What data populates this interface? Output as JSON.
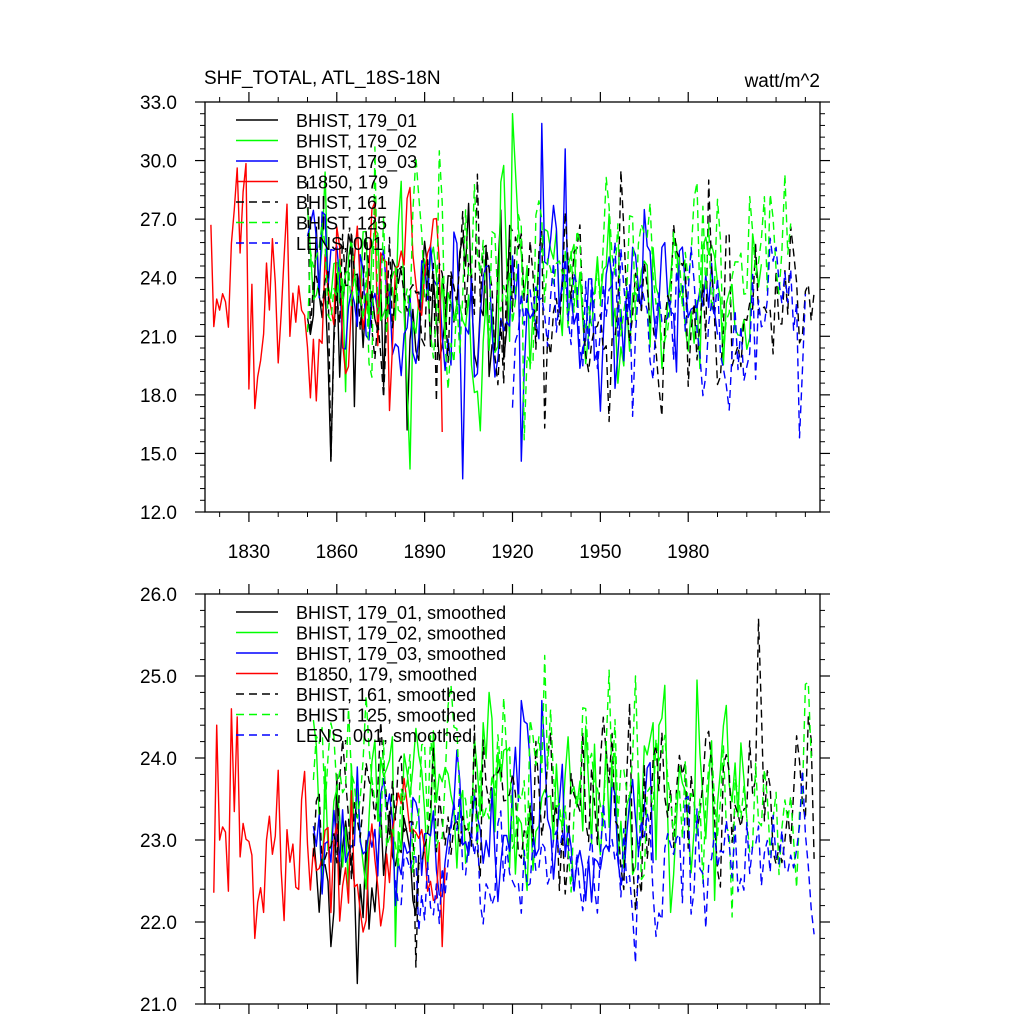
{
  "chart_data": [
    {
      "type": "line",
      "title": "SHF_TOTAL, ATL_18S-18N",
      "units": "watt/m^2",
      "xlim": [
        1815,
        2025
      ],
      "ylim": [
        12.0,
        33.0
      ],
      "x_ticks": [
        1830,
        1860,
        1890,
        1920,
        1950,
        1980
      ],
      "x_tick_labels": [
        "1830",
        "1860",
        "1890",
        "1920",
        "1950",
        "1980"
      ],
      "y_ticks": [
        12.0,
        15.0,
        18.0,
        21.0,
        24.0,
        27.0,
        30.0,
        33.0
      ],
      "y_tick_labels": [
        "12.0",
        "15.0",
        "18.0",
        "21.0",
        "24.0",
        "27.0",
        "30.0",
        "33.0"
      ],
      "grid": false,
      "legend_position": "top-left",
      "series": [
        {
          "name": "BHIST, 179_01",
          "color": "#000000",
          "dash": "solid",
          "x_start": 1850,
          "x_end": 1920,
          "mean": 22.8,
          "amplitude": 2.6,
          "seed": 11,
          "extremes": [
            [
              1858,
              14.6
            ],
            [
              1866,
              17.4
            ],
            [
              1884,
              16.2
            ],
            [
              1905,
              27.8
            ]
          ]
        },
        {
          "name": "BHIST, 179_02",
          "color": "#00ff00",
          "dash": "solid",
          "x_start": 1850,
          "x_end": 2005,
          "mean": 23.3,
          "amplitude": 2.6,
          "seed": 23,
          "extremes": [
            [
              1885,
              14.2
            ],
            [
              1920,
              32.4
            ],
            [
              1916,
              28.9
            ],
            [
              1945,
              19.6
            ]
          ]
        },
        {
          "name": "BHIST, 179_03",
          "color": "#0000ff",
          "dash": "solid",
          "x_start": 1850,
          "x_end": 1990,
          "mean": 22.8,
          "amplitude": 2.4,
          "seed": 37,
          "extremes": [
            [
              1903,
              13.7
            ],
            [
              1923,
              14.6
            ],
            [
              1930,
              31.9
            ],
            [
              1938,
              30.6
            ]
          ]
        },
        {
          "name": "B1850, 179",
          "color": "#ff0000",
          "dash": "solid",
          "x_start": 1817,
          "x_end": 1896,
          "mean": 23.0,
          "amplitude": 3.0,
          "seed": 5,
          "extremes": [
            [
              1825,
              27.5
            ],
            [
              1830,
              18.3
            ],
            [
              1832,
              17.3
            ],
            [
              1838,
              26.0
            ],
            [
              1878,
              17.2
            ],
            [
              1893,
              27.0
            ],
            [
              1896,
              16.1
            ]
          ]
        },
        {
          "name": "BHIST, 161",
          "color": "#000000",
          "dash": "8,5",
          "x_start": 1850,
          "x_end": 2023,
          "mean": 23.3,
          "amplitude": 2.6,
          "seed": 47,
          "extremes": [
            [
              1858,
              14.6
            ],
            [
              1908,
              29.3
            ],
            [
              1931,
              16.3
            ],
            [
              1957,
              29.5
            ],
            [
              1987,
              29.0
            ]
          ]
        },
        {
          "name": "BHIST, 125",
          "color": "#00ff00",
          "dash": "8,5",
          "x_start": 1850,
          "x_end": 2015,
          "mean": 23.8,
          "amplitude": 2.7,
          "seed": 59,
          "extremes": [
            [
              1873,
              30.7
            ],
            [
              1924,
              15.7
            ],
            [
              2013,
              29.3
            ],
            [
              1895,
              30.5
            ]
          ]
        },
        {
          "name": "LENS, 001",
          "color": "#0000ff",
          "dash": "8,5",
          "x_start": 1920,
          "x_end": 2020,
          "mean": 22.6,
          "amplitude": 2.2,
          "seed": 71,
          "extremes": [
            [
              2018,
              15.8
            ],
            [
              1961,
              16.9
            ],
            [
              1975,
              19.8
            ]
          ]
        }
      ]
    },
    {
      "type": "line",
      "xlim": [
        1815,
        2025
      ],
      "ylim": [
        21.0,
        26.0
      ],
      "x_ticks": [
        1830,
        1860,
        1890,
        1920,
        1950,
        1980
      ],
      "y_ticks": [
        21.0,
        22.0,
        23.0,
        24.0,
        25.0,
        26.0
      ],
      "y_tick_labels": [
        "21.0",
        "22.0",
        "23.0",
        "24.0",
        "25.0",
        "26.0"
      ],
      "grid": false,
      "legend_position": "top-left",
      "series": [
        {
          "name": "BHIST, 179_01, smoothed",
          "color": "#000000",
          "dash": "solid",
          "x_start": 1852,
          "x_end": 1888,
          "mean": 22.7,
          "amplitude": 0.45,
          "seed": 13,
          "extremes": [
            [
              1858,
              21.7
            ],
            [
              1867,
              21.25
            ],
            [
              1860,
              23.8
            ]
          ]
        },
        {
          "name": "BHIST, 179_02, smoothed",
          "color": "#00ff00",
          "dash": "solid",
          "x_start": 1852,
          "x_end": 2000,
          "mean": 23.4,
          "amplitude": 0.6,
          "seed": 29,
          "extremes": [
            [
              1880,
              21.7
            ],
            [
              1912,
              24.8
            ],
            [
              1983,
              24.95
            ],
            [
              1970,
              24.4
            ]
          ]
        },
        {
          "name": "BHIST, 179_03, smoothed",
          "color": "#0000ff",
          "dash": "solid",
          "x_start": 1852,
          "x_end": 1968,
          "mean": 23.0,
          "amplitude": 0.5,
          "seed": 41,
          "extremes": [
            [
              1923,
              24.7
            ],
            [
              1930,
              24.7
            ],
            [
              1880,
              22.2
            ]
          ]
        },
        {
          "name": "B1850, 179, smoothed",
          "color": "#ff0000",
          "dash": "solid",
          "x_start": 1818,
          "x_end": 1897,
          "mean": 22.8,
          "amplitude": 0.45,
          "seed": 7,
          "extremes": [
            [
              1819,
              24.4
            ],
            [
              1824,
              24.6
            ],
            [
              1826,
              24.5
            ],
            [
              1832,
              21.8
            ],
            [
              1836,
              23.0
            ],
            [
              1840,
              23.85
            ],
            [
              1865,
              23.6
            ],
            [
              1896,
              21.7
            ]
          ]
        },
        {
          "name": "BHIST, 161, smoothed",
          "color": "#000000",
          "dash": "8,5",
          "x_start": 1852,
          "x_end": 2023,
          "mean": 23.4,
          "amplitude": 0.55,
          "seed": 53,
          "extremes": [
            [
              1887,
              21.45
            ],
            [
              1954,
              24.3
            ],
            [
              2004,
              25.7
            ],
            [
              2021,
              24.5
            ],
            [
              1980,
              22.9
            ]
          ]
        },
        {
          "name": "BHIST, 125, smoothed",
          "color": "#00ff00",
          "dash": "8,5",
          "x_start": 1852,
          "x_end": 2022,
          "mean": 23.6,
          "amplitude": 0.6,
          "seed": 61,
          "extremes": [
            [
              1931,
              25.25
            ],
            [
              1962,
              25.0
            ],
            [
              2020,
              24.9
            ],
            [
              1886,
              22.6
            ]
          ]
        },
        {
          "name": "LENS, 001, smoothed",
          "color": "#0000ff",
          "dash": "8,5",
          "x_start": 1880,
          "x_end": 2023,
          "mean": 22.7,
          "amplitude": 0.45,
          "seed": 83,
          "extremes": [
            [
              1962,
              21.5
            ],
            [
              2019,
              23.85
            ],
            [
              2023,
              21.85
            ],
            [
              1915,
              23.2
            ]
          ]
        }
      ]
    }
  ]
}
